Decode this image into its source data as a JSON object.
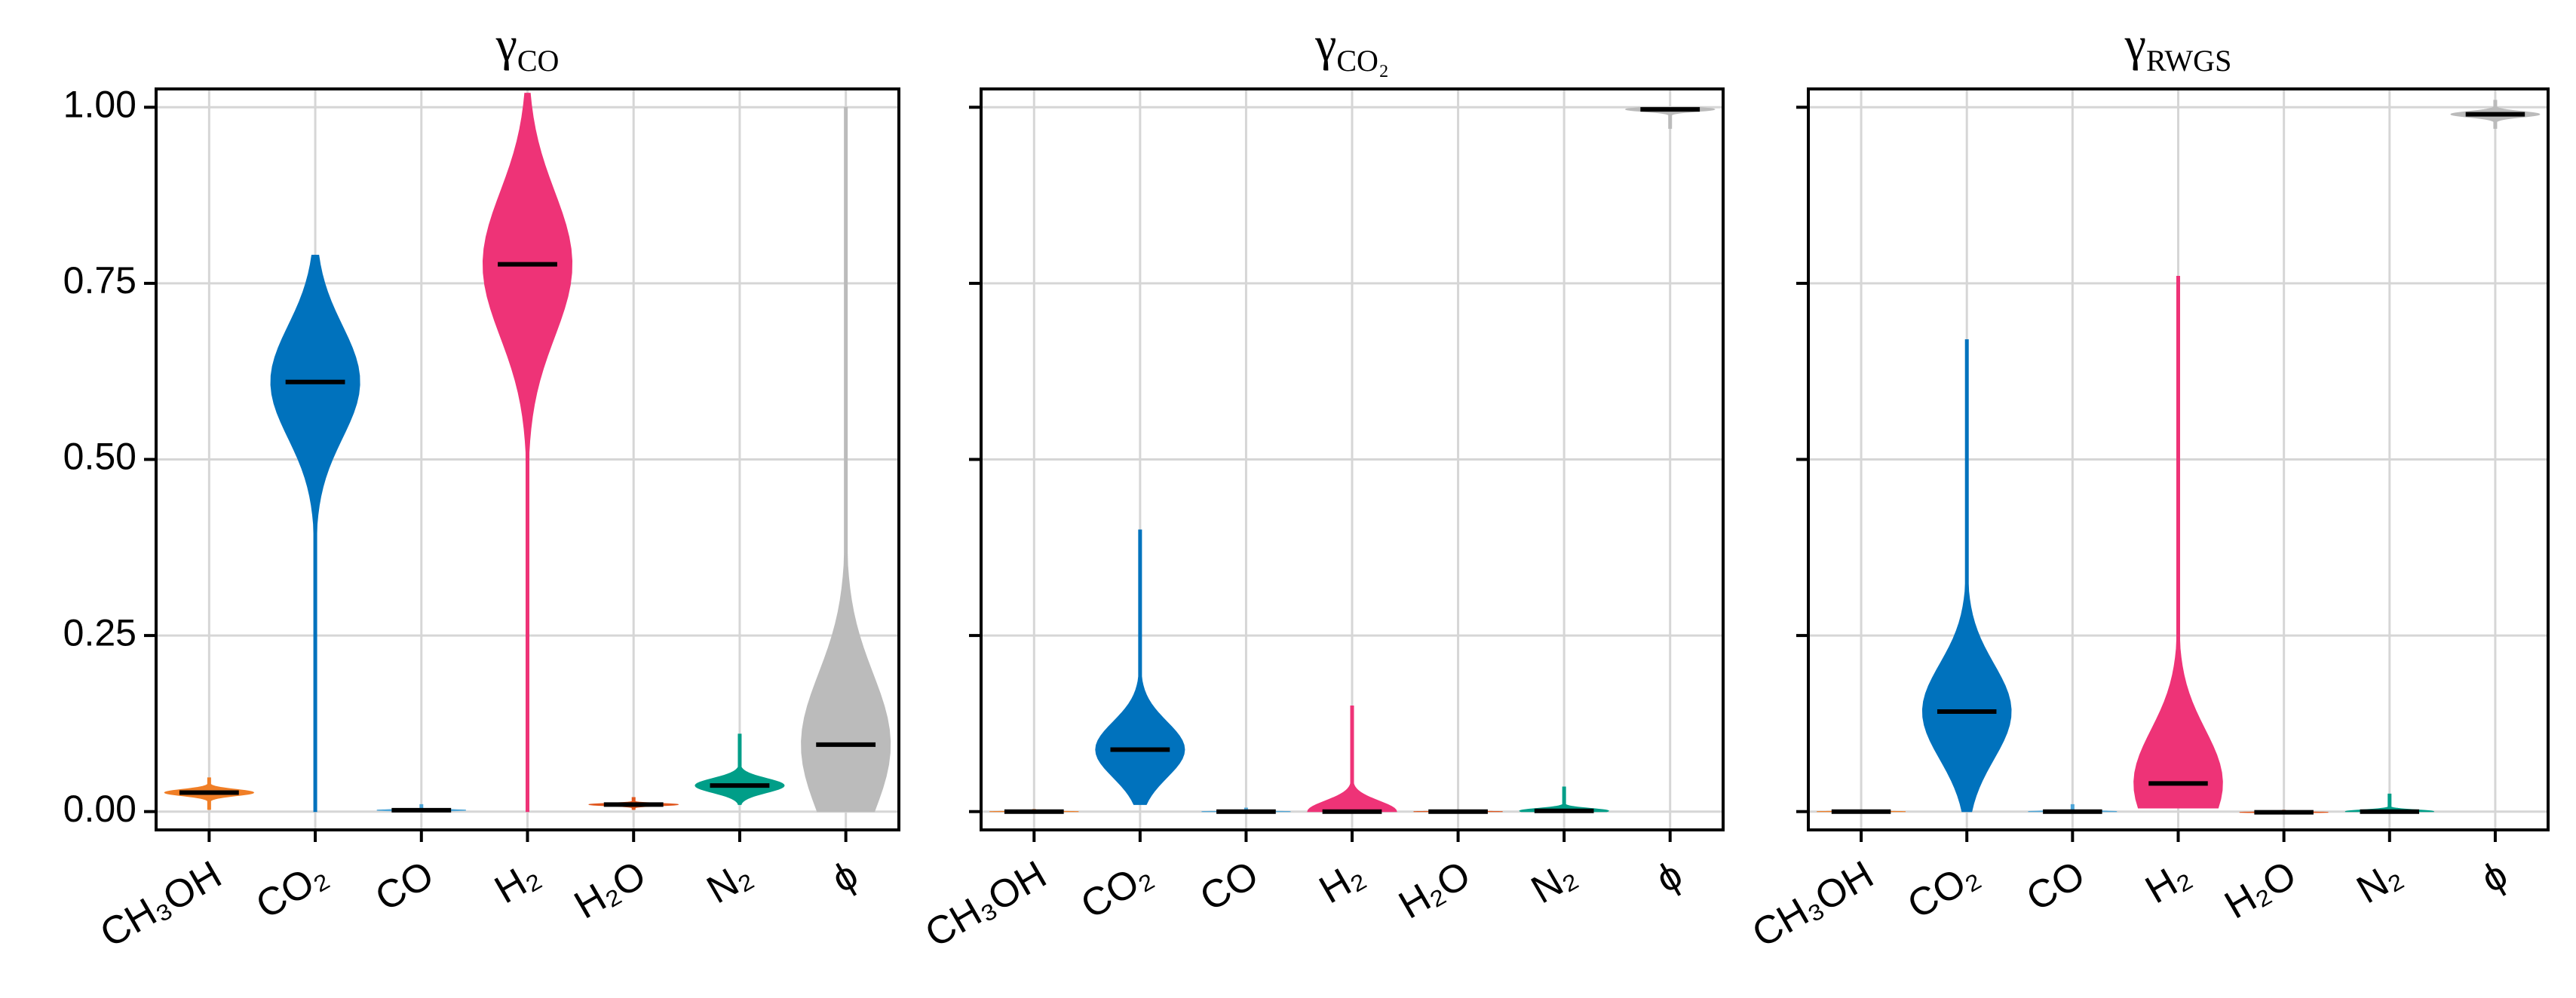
{
  "chart_data": [
    {
      "type": "violin",
      "title": {
        "symbol": "γ",
        "subscript": "CO"
      },
      "categories": [
        "CH₃OH",
        "CO₂",
        "CO",
        "H₂",
        "H₂O",
        "N₂",
        "ϕ"
      ],
      "colors": [
        "#f07e26",
        "#0072bd",
        "#4fa6d8",
        "#ee3377",
        "#e0571f",
        "#009e88",
        "#bbbbbb"
      ],
      "medians": [
        0.027,
        0.61,
        0.002,
        0.777,
        0.01,
        0.037,
        0.095
      ],
      "mins": [
        0.003,
        0,
        0,
        0,
        0.003,
        0.01,
        0
      ],
      "maxs": [
        0.048,
        0.79,
        0.01,
        1.02,
        0.02,
        0.11,
        1.0
      ],
      "ylim": [
        -0.026,
        1.026
      ],
      "yticks": [
        {
          "value": 0,
          "label": "0.00"
        },
        {
          "value": 0.25,
          "label": "0.25"
        },
        {
          "value": 0.5,
          "label": "0.50"
        },
        {
          "value": 0.75,
          "label": "0.75"
        },
        {
          "value": 1,
          "label": "1.00"
        }
      ],
      "show_ytick_labels": true,
      "grid": true
    },
    {
      "type": "violin",
      "title": {
        "symbol": "γ",
        "subscript": "CO₂"
      },
      "categories": [
        "CH₃OH",
        "CO₂",
        "CO",
        "H₂",
        "H₂O",
        "N₂",
        "ϕ"
      ],
      "colors": [
        "#f07e26",
        "#0072bd",
        "#4fa6d8",
        "#ee3377",
        "#e0571f",
        "#009e88",
        "#bbbbbb"
      ],
      "medians": [
        0,
        0.088,
        0,
        0,
        0,
        0.001,
        0.997
      ],
      "mins": [
        0,
        0.01,
        0,
        0,
        0,
        0,
        0.97
      ],
      "maxs": [
        0.003,
        0.4,
        0.005,
        0.15,
        0.002,
        0.035,
        1.0
      ],
      "ylim": [
        -0.026,
        1.026
      ],
      "yticks": [
        0,
        0.25,
        0.5,
        0.75,
        1
      ],
      "show_ytick_labels": false,
      "grid": true
    },
    {
      "type": "violin",
      "title": {
        "symbol": "γ",
        "subscript": "RWGS"
      },
      "categories": [
        "CH₃OH",
        "CO₂",
        "CO",
        "H₂",
        "H₂O",
        "N₂",
        "ϕ"
      ],
      "colors": [
        "#f07e26",
        "#0072bd",
        "#4fa6d8",
        "#ee3377",
        "#e0571f",
        "#009e88",
        "#bbbbbb"
      ],
      "medians": [
        0,
        0.142,
        0,
        0.04,
        -0.001,
        0,
        0.99
      ],
      "mins": [
        0,
        0,
        0,
        0.005,
        -0.003,
        0,
        0.97
      ],
      "maxs": [
        0.002,
        0.67,
        0.01,
        0.76,
        0.002,
        0.025,
        1.01
      ],
      "ylim": [
        -0.026,
        1.026
      ],
      "yticks": [
        0,
        0.25,
        0.5,
        0.75,
        1
      ],
      "show_ytick_labels": false,
      "grid": true
    }
  ]
}
